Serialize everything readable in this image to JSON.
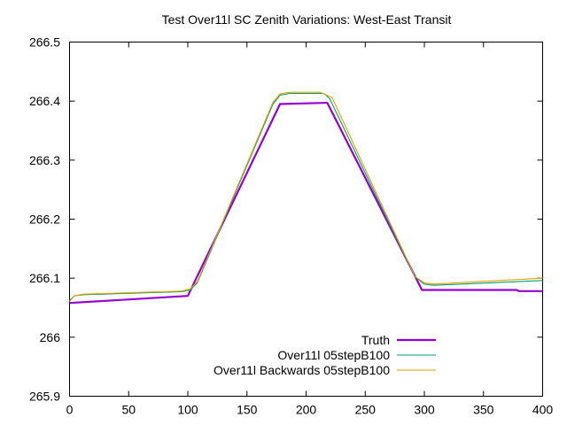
{
  "chart_data": {
    "type": "line",
    "title": "Test Over11l SC Zenith Variations: West-East Transit",
    "xlabel": "",
    "ylabel": "",
    "xlim": [
      0,
      400
    ],
    "ylim": [
      265.9,
      266.5
    ],
    "xticks": [
      "0",
      "50",
      "100",
      "150",
      "200",
      "250",
      "300",
      "350",
      "400"
    ],
    "yticks": [
      "266.5",
      "266.4",
      "266.3",
      "266.2",
      "266.1",
      "266",
      "265.9"
    ],
    "xtick_values": [
      0,
      50,
      100,
      150,
      200,
      250,
      300,
      350,
      400
    ],
    "ytick_values": [
      266.5,
      266.4,
      266.3,
      266.2,
      266.1,
      266.0,
      265.9
    ],
    "grid": false,
    "legend_position": "bottom-center",
    "series": [
      {
        "name": "Truth",
        "color": "#9400d3",
        "points": [
          [
            0,
            266.058
          ],
          [
            100,
            266.07
          ],
          [
            178,
            266.395
          ],
          [
            215,
            266.397
          ],
          [
            218,
            266.397
          ],
          [
            298,
            266.08
          ],
          [
            378,
            266.08
          ],
          [
            380,
            266.078
          ],
          [
            400,
            266.078
          ]
        ]
      },
      {
        "name": "Over11l 05stepB100",
        "color": "#009e73",
        "points": [
          [
            0,
            266.062
          ],
          [
            4,
            266.07
          ],
          [
            12,
            266.072
          ],
          [
            95,
            266.077
          ],
          [
            102,
            266.08
          ],
          [
            108,
            266.092
          ],
          [
            172,
            266.395
          ],
          [
            178,
            266.41
          ],
          [
            186,
            266.413
          ],
          [
            215,
            266.413
          ],
          [
            220,
            266.404
          ],
          [
            292,
            266.102
          ],
          [
            300,
            266.09
          ],
          [
            308,
            266.088
          ],
          [
            400,
            266.096
          ]
        ]
      },
      {
        "name": "Over11l Backwards 05stepB100",
        "color": "#e69f00",
        "points": [
          [
            0,
            266.06
          ],
          [
            4,
            266.07
          ],
          [
            12,
            266.073
          ],
          [
            95,
            266.078
          ],
          [
            102,
            266.082
          ],
          [
            108,
            266.094
          ],
          [
            172,
            266.398
          ],
          [
            178,
            266.412
          ],
          [
            186,
            266.415
          ],
          [
            212,
            266.415
          ],
          [
            222,
            266.406
          ],
          [
            292,
            266.103
          ],
          [
            300,
            266.092
          ],
          [
            308,
            266.09
          ],
          [
            400,
            266.1
          ]
        ]
      }
    ]
  }
}
